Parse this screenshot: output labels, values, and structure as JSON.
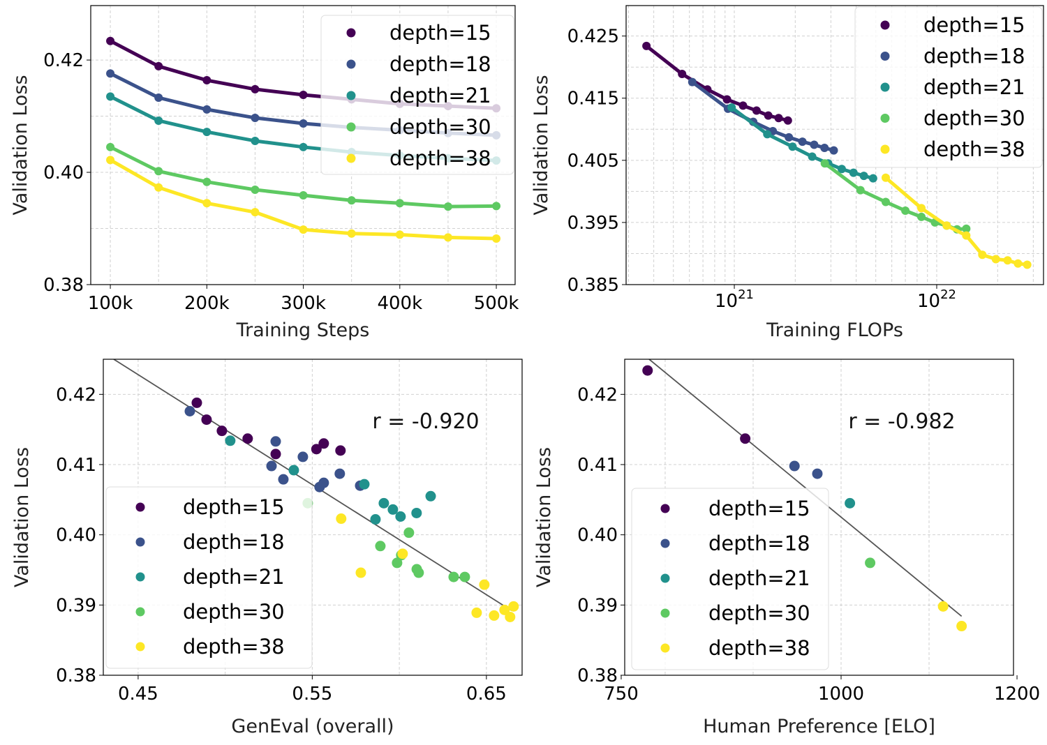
{
  "colors": {
    "depth=15": "#440154",
    "depth=18": "#3b528b",
    "depth=21": "#21918c",
    "depth=30": "#5ec962",
    "depth=38": "#fde725"
  },
  "chart_data": [
    {
      "type": "line",
      "xlabel": "Training Steps",
      "ylabel": "Validation Loss",
      "xlim": [
        79700,
        519500
      ],
      "ylim": [
        0.38,
        0.4297
      ],
      "xticks": [
        100000,
        200000,
        300000,
        400000,
        500000
      ],
      "xtick_labels": [
        "100k",
        "200k",
        "300k",
        "400k",
        "500k"
      ],
      "yticks": [
        0.38,
        0.4,
        0.42
      ],
      "ytick_labels": [
        "0.38",
        "0.40",
        "0.42"
      ],
      "grid": true,
      "legend_placement": "upper-right",
      "x": [
        100000,
        150000,
        200000,
        250000,
        300000,
        350000,
        400000,
        450000,
        500000
      ],
      "series": [
        {
          "name": "depth=15",
          "values": [
            0.4234,
            0.4189,
            0.4164,
            0.4148,
            0.4138,
            0.413,
            0.4122,
            0.4118,
            0.4114
          ]
        },
        {
          "name": "depth=18",
          "values": [
            0.4176,
            0.4133,
            0.4112,
            0.4097,
            0.4087,
            0.408,
            0.4075,
            0.407,
            0.4066
          ]
        },
        {
          "name": "depth=21",
          "values": [
            0.4135,
            0.4092,
            0.4072,
            0.4056,
            0.4045,
            0.4036,
            0.403,
            0.4025,
            0.4021
          ]
        },
        {
          "name": "depth=30",
          "values": [
            0.4045,
            0.4002,
            0.3983,
            0.3969,
            0.3959,
            0.395,
            0.3945,
            0.3939,
            0.394
          ]
        },
        {
          "name": "depth=38",
          "values": [
            0.4022,
            0.3973,
            0.3945,
            0.3929,
            0.3898,
            0.3891,
            0.3889,
            0.3884,
            0.3882
          ]
        }
      ]
    },
    {
      "type": "line",
      "xlabel": "Training FLOPs",
      "ylabel": "Validation Loss",
      "xscale": "log",
      "xlim": [
        2.92e+20,
        3.37e+22
      ],
      "ylim": [
        0.385,
        0.4299
      ],
      "xticks": [
        1e+21,
        1e+22
      ],
      "xtick_labels": [
        [
          "10",
          "21"
        ],
        [
          "10",
          "22"
        ]
      ],
      "yticks": [
        0.385,
        0.395,
        0.405,
        0.415,
        0.425
      ],
      "ytick_labels": [
        "0.385",
        "0.395",
        "0.405",
        "0.415",
        "0.425"
      ],
      "grid": true,
      "legend_placement": "upper-right",
      "series": [
        {
          "name": "depth=15",
          "x": [
            3.68e+20,
            5.52e+20,
            7.36e+20,
            9.2e+20,
            1.104e+21,
            1.288e+21,
            1.472e+21,
            1.656e+21,
            1.84e+21
          ],
          "values": [
            0.4234,
            0.4189,
            0.4164,
            0.4148,
            0.4138,
            0.413,
            0.4122,
            0.4118,
            0.4114
          ]
        },
        {
          "name": "depth=18",
          "x": [
            6.2e+20,
            9.3e+20,
            1.24e+21,
            1.55e+21,
            1.86e+21,
            2.17e+21,
            2.48e+21,
            2.79e+21,
            3.1e+21
          ],
          "values": [
            0.4176,
            0.4133,
            0.4112,
            0.4097,
            0.4087,
            0.408,
            0.4075,
            0.407,
            0.4066
          ]
        },
        {
          "name": "depth=21",
          "x": [
            9.7e+20,
            1.455e+21,
            1.94e+21,
            2.425e+21,
            2.91e+21,
            3.395e+21,
            3.88e+21,
            4.365e+21,
            4.85e+21
          ],
          "values": [
            0.4135,
            0.4092,
            0.4072,
            0.4056,
            0.4045,
            0.4036,
            0.403,
            0.4025,
            0.4021
          ]
        },
        {
          "name": "depth=30",
          "x": [
            2.8e+21,
            4.2e+21,
            5.6e+21,
            7e+21,
            8.4e+21,
            9.8e+21,
            1.12e+22,
            1.26e+22,
            1.4e+22
          ],
          "values": [
            0.4045,
            0.4002,
            0.3983,
            0.3969,
            0.3959,
            0.395,
            0.3945,
            0.3939,
            0.394
          ]
        },
        {
          "name": "depth=38",
          "x": [
            5.6e+21,
            8.4e+21,
            1.12e+22,
            1.4e+22,
            1.68e+22,
            1.96e+22,
            2.24e+22,
            2.52e+22,
            2.8e+22
          ],
          "values": [
            0.4022,
            0.3973,
            0.3945,
            0.3929,
            0.3898,
            0.3891,
            0.3889,
            0.3884,
            0.3882
          ]
        }
      ]
    },
    {
      "type": "scatter",
      "xlabel": "GenEval (overall)",
      "ylabel": "Validation Loss",
      "xlim": [
        0.43,
        0.6705
      ],
      "ylim": [
        0.38,
        0.425
      ],
      "xticks": [
        0.45,
        0.55,
        0.65
      ],
      "xtick_labels": [
        "0.45",
        "0.55",
        "0.65"
      ],
      "xgrid": [
        0.45,
        0.5,
        0.55,
        0.6,
        0.65
      ],
      "yticks": [
        0.38,
        0.39,
        0.4,
        0.41,
        0.42
      ],
      "ytick_labels": [
        "0.38",
        "0.39",
        "0.40",
        "0.41",
        "0.42"
      ],
      "grid": true,
      "legend_placement": "lower-left",
      "annotation": "r = -0.920",
      "fit_line": {
        "x": [
          0.436,
          0.6645
        ],
        "y": [
          0.425,
          0.3892
        ]
      },
      "series": [
        {
          "name": "depth=15",
          "x": [
            0.4837,
            0.4893,
            0.4981,
            0.5129,
            0.529,
            0.5524,
            0.5566,
            0.5662
          ],
          "values": [
            0.4188,
            0.4164,
            0.4148,
            0.4137,
            0.4115,
            0.4122,
            0.413,
            0.412
          ]
        },
        {
          "name": "depth=18",
          "x": [
            0.4797,
            0.529,
            0.5266,
            0.5334,
            0.5446,
            0.5542,
            0.5566,
            0.5658,
            0.5775
          ],
          "values": [
            0.4176,
            0.4133,
            0.4098,
            0.4079,
            0.4111,
            0.4068,
            0.4074,
            0.4087,
            0.407
          ]
        },
        {
          "name": "depth=21",
          "x": [
            0.5029,
            0.5394,
            0.5799,
            0.5911,
            0.5963,
            0.5863,
            0.6007,
            0.6099,
            0.618
          ],
          "values": [
            0.4134,
            0.4092,
            0.4072,
            0.4045,
            0.4036,
            0.4022,
            0.4026,
            0.4031,
            0.4055
          ]
        },
        {
          "name": "depth=30",
          "x": [
            0.5474,
            0.6055,
            0.5891,
            0.5987,
            0.6011,
            0.61,
            0.6111,
            0.6312,
            0.6376
          ],
          "values": [
            0.4045,
            0.4003,
            0.3984,
            0.396,
            0.3971,
            0.3951,
            0.3946,
            0.394,
            0.394
          ]
        },
        {
          "name": "depth=38",
          "x": [
            0.5666,
            0.5779,
            0.6019,
            0.6488,
            0.6444,
            0.6544,
            0.6604,
            0.6636,
            0.6656
          ],
          "values": [
            0.4023,
            0.3946,
            0.3973,
            0.3929,
            0.3889,
            0.3885,
            0.3893,
            0.3883,
            0.3898
          ]
        }
      ]
    },
    {
      "type": "scatter",
      "xlabel": "Human Preference [ELO]",
      "ylabel": "Validation Loss",
      "xlim": [
        754,
        1196
      ],
      "ylim": [
        0.38,
        0.425
      ],
      "xticks": [
        750,
        1000,
        1200
      ],
      "xtick_labels": [
        "750",
        "1000",
        "1200"
      ],
      "xgrid": [
        800,
        900,
        1000,
        1100
      ],
      "yticks": [
        0.38,
        0.39,
        0.4,
        0.41,
        0.42
      ],
      "ytick_labels": [
        "0.38",
        "0.39",
        "0.40",
        "0.41",
        "0.42"
      ],
      "grid": true,
      "legend_placement": "lower-left",
      "annotation": "r = -0.982",
      "fit_line": {
        "x": [
          781.8,
          1137
        ],
        "y": [
          0.425,
          0.3884
        ]
      },
      "series": [
        {
          "name": "depth=15",
          "x": [
            780,
            891
          ],
          "values": [
            0.4234,
            0.4137
          ]
        },
        {
          "name": "depth=18",
          "x": [
            947,
            973
          ],
          "values": [
            0.4098,
            0.4087
          ]
        },
        {
          "name": "depth=21",
          "x": [
            1010
          ],
          "values": [
            0.4045
          ]
        },
        {
          "name": "depth=30",
          "x": [
            1033
          ],
          "values": [
            0.396
          ]
        },
        {
          "name": "depth=38",
          "x": [
            1116,
            1137
          ],
          "values": [
            0.3898,
            0.387
          ]
        }
      ]
    }
  ]
}
